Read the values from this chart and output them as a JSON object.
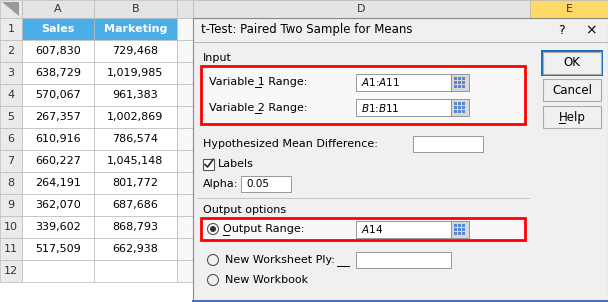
{
  "spreadsheet": {
    "col_A_label": "Sales",
    "col_B_label": "Marketing",
    "col_A_values": [
      "607,830",
      "638,729",
      "570,067",
      "267,357",
      "610,916",
      "660,227",
      "264,191",
      "362,070",
      "339,602",
      "517,509"
    ],
    "col_B_values": [
      "729,468",
      "1,019,985",
      "961,383",
      "1,002,869",
      "786,574",
      "1,045,148",
      "801,772",
      "687,686",
      "868,793",
      "662,938"
    ],
    "header_bg": "#4baee8",
    "header_fg": "#FFFFFF",
    "col_header_bg": "#D4D4D4",
    "row_header_bg": "#EBEBEB",
    "col_E_header_bg": "#FFD966",
    "grid_color": "#BBBBBB"
  },
  "dialog": {
    "title": "t-Test: Paired Two Sample for Means",
    "bg": "#F0F0F0",
    "sections": {
      "input_label": "Input",
      "var1_label": "Variable 1 Range:",
      "var1_value": "$A$1:$A$11",
      "var2_label": "Variable 2 Range:",
      "var2_value": "$B$1:$B$11",
      "hyp_label": "Hypothesized Mean Difference:",
      "labels_text": "Labels",
      "alpha_label": "Alpha:",
      "alpha_value": "0.05",
      "output_label": "Output options",
      "output_range_label": "Output Range:",
      "output_range_value": "$A$14",
      "new_worksheet_label": "New Worksheet Ply:",
      "new_workbook_label": "New Workbook"
    },
    "buttons": [
      "OK",
      "Cancel",
      "Help"
    ],
    "red_box_color": "#FF0000",
    "ok_border": "#1a6fbf"
  }
}
